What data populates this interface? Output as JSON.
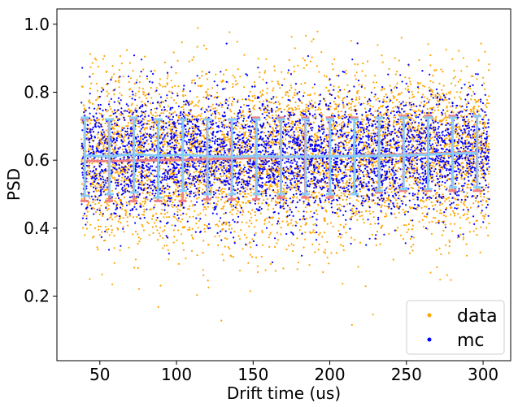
{
  "chart_data": {
    "type": "scatter",
    "xlabel": "Drift time (us)",
    "ylabel": "PSD",
    "xlim": [
      22,
      318
    ],
    "ylim": [
      0.01,
      1.045
    ],
    "xticks": [
      50,
      100,
      150,
      200,
      250,
      300
    ],
    "yticks": [
      0.2,
      0.4,
      0.6,
      0.8,
      1.0
    ],
    "grid": false,
    "legend": "bottom-right",
    "x_extent": [
      38,
      304
    ],
    "series": [
      {
        "name": "data",
        "color": "#FFA500",
        "marker": "dot",
        "profile_mean": [
          0.598,
          0.597,
          0.599,
          0.6,
          0.601,
          0.603,
          0.605,
          0.607,
          0.608,
          0.61,
          0.612,
          0.613,
          0.615,
          0.617,
          0.619,
          0.621,
          0.623
        ],
        "profile_err_low": [
          0.48,
          0.48,
          0.48,
          0.48,
          0.48,
          0.485,
          0.485,
          0.485,
          0.49,
          0.49,
          0.49,
          0.5,
          0.505,
          0.51,
          0.51,
          0.51,
          0.51
        ],
        "profile_err_high": [
          0.72,
          0.72,
          0.72,
          0.72,
          0.72,
          0.72,
          0.72,
          0.725,
          0.725,
          0.725,
          0.725,
          0.725,
          0.725,
          0.73,
          0.73,
          0.73,
          0.73
        ]
      },
      {
        "name": "mc",
        "color": "#0000FF",
        "marker": "dot",
        "profile_mean": [
          0.614,
          0.611,
          0.618,
          0.613,
          0.616,
          0.612,
          0.61,
          0.612,
          0.61,
          0.611,
          0.611,
          0.612,
          0.613,
          0.614,
          0.617,
          0.619,
          0.621
        ],
        "profile_err_low": [
          0.495,
          0.5,
          0.505,
          0.49,
          0.51,
          0.5,
          0.5,
          0.5,
          0.5,
          0.5,
          0.5,
          0.5,
          0.51,
          0.515,
          0.515,
          0.52,
          0.52
        ],
        "profile_err_high": [
          0.725,
          0.72,
          0.725,
          0.72,
          0.72,
          0.72,
          0.72,
          0.72,
          0.72,
          0.72,
          0.72,
          0.72,
          0.725,
          0.725,
          0.725,
          0.725,
          0.73
        ]
      }
    ],
    "profile_x": [
      40,
      56,
      72,
      88,
      104,
      120,
      136,
      152,
      168,
      184,
      200,
      216,
      232,
      248,
      264,
      280,
      296
    ],
    "profile_colors": {
      "data": "#F08080",
      "mc": "#87CEFA"
    }
  }
}
